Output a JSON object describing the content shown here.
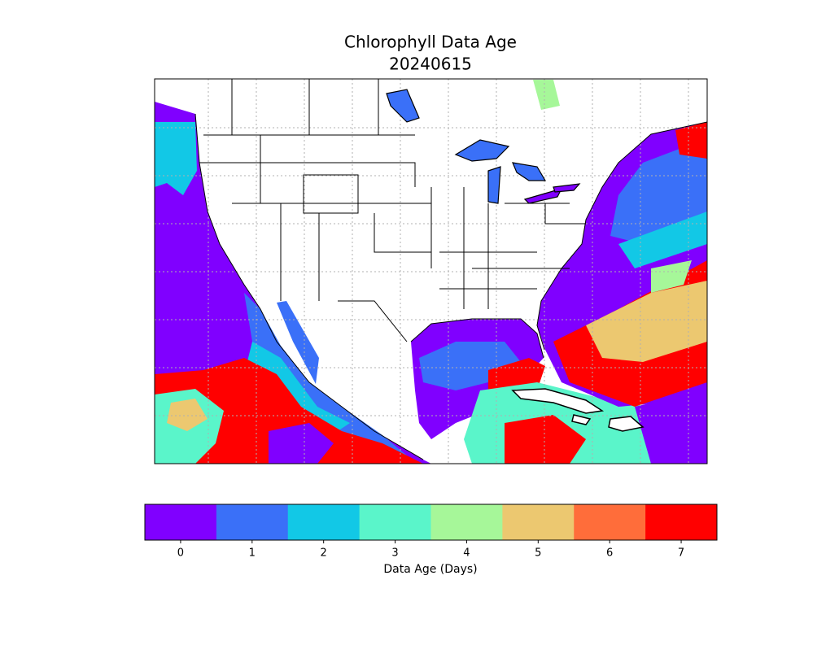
{
  "title": "Chlorophyll Data Age",
  "subtitle": "20240615",
  "colorbar": {
    "label": "Data Age (Days)",
    "ticks": [
      0,
      1,
      2,
      3,
      4,
      5,
      6,
      7
    ],
    "colors": [
      "#8000ff",
      "#3a70f8",
      "#12c8e6",
      "#5af5ca",
      "#a6f799",
      "#ecc870",
      "#ff6d3a",
      "#ff0000"
    ]
  }
}
